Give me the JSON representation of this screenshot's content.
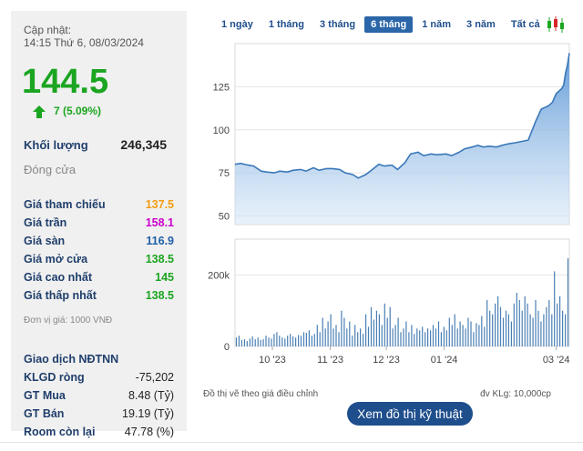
{
  "stats": {
    "update_label": "Cập nhật:",
    "update_time": "14:15 Thứ 6, 08/03/2024",
    "price": "144.5",
    "change": "7 (5.09%)",
    "volume_label": "Khối lượng",
    "volume_value": "246,345",
    "close_label": "Đóng cửa",
    "rows": [
      {
        "label": "Giá tham chiếu",
        "value": "137.5",
        "color": "#f39c12"
      },
      {
        "label": "Giá trần",
        "value": "158.1",
        "color": "#cc00cc"
      },
      {
        "label": "Giá sàn",
        "value": "116.9",
        "color": "#1f5fa8"
      },
      {
        "label": "Giá mở cửa",
        "value": "138.5",
        "color": "#1ba520"
      },
      {
        "label": "Giá cao nhất",
        "value": "145",
        "color": "#1ba520"
      },
      {
        "label": "Giá thấp nhất",
        "value": "138.5",
        "color": "#1ba520"
      }
    ],
    "unit_note": "Đơn vị giá: 1000 VNĐ",
    "foreign_title": "Giao dịch NĐTNN",
    "foreign_rows": [
      {
        "label": "KLGD ròng",
        "value": "-75,202"
      },
      {
        "label": "GT Mua",
        "value": "8.48 (Tỷ)"
      },
      {
        "label": "GT Bán",
        "value": "19.19 (Tỷ)"
      },
      {
        "label": "Room còn lại",
        "value": "47.78 (%)"
      }
    ]
  },
  "range_tabs": [
    "1 ngày",
    "1 tháng",
    "3 tháng",
    "6 tháng",
    "1 năm",
    "3 năm",
    "Tất cả"
  ],
  "active_tab": "6 tháng",
  "candlestick_icon": "candlestick-icon",
  "footnote_left": "Đồ thị vẽ theo giá điều chỉnh",
  "footnote_right": "đv KLg: 10,000cp",
  "tech_button": "Xem đồ thị kỹ thuật",
  "colors": {
    "up": "#1ba520",
    "accent": "#1f4e8c",
    "line": "#3a78b8",
    "bar": "#4a7fb5"
  },
  "chart_data": [
    {
      "type": "area",
      "ylim": [
        45,
        150
      ],
      "yticks": [
        50,
        75,
        100,
        125
      ],
      "grid": true,
      "xlim": [
        "2023-09-11",
        "2024-03-08"
      ],
      "points": [
        [
          "2023-09-11",
          80
        ],
        [
          "2023-09-14",
          80.5
        ],
        [
          "2023-09-18",
          79.5
        ],
        [
          "2023-09-21",
          79
        ],
        [
          "2023-09-25",
          76
        ],
        [
          "2023-09-28",
          75.5
        ],
        [
          "2023-10-02",
          75
        ],
        [
          "2023-10-05",
          76
        ],
        [
          "2023-10-09",
          75.5
        ],
        [
          "2023-10-12",
          76.5
        ],
        [
          "2023-10-16",
          77
        ],
        [
          "2023-10-19",
          76
        ],
        [
          "2023-10-23",
          78
        ],
        [
          "2023-10-26",
          76.5
        ],
        [
          "2023-10-30",
          77.5
        ],
        [
          "2023-11-02",
          77.5
        ],
        [
          "2023-11-06",
          77
        ],
        [
          "2023-11-09",
          75
        ],
        [
          "2023-11-13",
          74
        ],
        [
          "2023-11-16",
          72
        ],
        [
          "2023-11-20",
          74
        ],
        [
          "2023-11-23",
          76.5
        ],
        [
          "2023-11-27",
          80
        ],
        [
          "2023-11-30",
          79
        ],
        [
          "2023-12-04",
          79.5
        ],
        [
          "2023-12-07",
          77
        ],
        [
          "2023-12-11",
          81
        ],
        [
          "2023-12-14",
          86
        ],
        [
          "2023-12-18",
          87
        ],
        [
          "2023-12-21",
          85
        ],
        [
          "2023-12-25",
          86
        ],
        [
          "2023-12-28",
          85.5
        ],
        [
          "2024-01-02",
          86
        ],
        [
          "2024-01-05",
          85
        ],
        [
          "2024-01-09",
          87
        ],
        [
          "2024-01-12",
          89
        ],
        [
          "2024-01-16",
          90
        ],
        [
          "2024-01-19",
          91
        ],
        [
          "2024-01-22",
          90
        ],
        [
          "2024-01-25",
          90.5
        ],
        [
          "2024-01-29",
          90
        ],
        [
          "2024-02-01",
          91
        ],
        [
          "2024-02-05",
          92
        ],
        [
          "2024-02-08",
          92.5
        ],
        [
          "2024-02-15",
          94
        ],
        [
          "2024-02-19",
          105
        ],
        [
          "2024-02-22",
          112
        ],
        [
          "2024-02-26",
          114
        ],
        [
          "2024-02-28",
          116
        ],
        [
          "2024-03-01",
          121
        ],
        [
          "2024-03-04",
          124
        ],
        [
          "2024-03-05",
          126
        ],
        [
          "2024-03-06",
          133
        ],
        [
          "2024-03-07",
          137.5
        ],
        [
          "2024-03-08",
          144.5
        ]
      ]
    },
    {
      "type": "bar",
      "unit": "10,000cp",
      "ylim": [
        0,
        300000
      ],
      "yticks": [
        {
          "value": 0,
          "label": "0"
        },
        {
          "value": 200000,
          "label": "200k"
        }
      ],
      "xticks": [
        {
          "date": "2023-10-01",
          "label": "10 '23"
        },
        {
          "date": "2023-11-01",
          "label": "11 '23"
        },
        {
          "date": "2023-12-01",
          "label": "12 '23"
        },
        {
          "date": "2024-01-01",
          "label": "01 '24"
        },
        {
          "date": "2024-03-01",
          "label": "03 '24"
        }
      ],
      "values": [
        25000,
        30000,
        18000,
        20000,
        15000,
        22000,
        28000,
        20000,
        25000,
        18000,
        20000,
        30000,
        25000,
        22000,
        35000,
        40000,
        30000,
        25000,
        22000,
        30000,
        35000,
        28000,
        25000,
        32000,
        30000,
        40000,
        38000,
        45000,
        30000,
        35000,
        60000,
        40000,
        80000,
        50000,
        70000,
        90000,
        50000,
        60000,
        40000,
        100000,
        80000,
        50000,
        70000,
        30000,
        60000,
        40000,
        50000,
        35000,
        90000,
        55000,
        110000,
        75000,
        100000,
        90000,
        60000,
        120000,
        80000,
        110000,
        50000,
        60000,
        80000,
        40000,
        50000,
        70000,
        40000,
        60000,
        35000,
        50000,
        45000,
        55000,
        40000,
        50000,
        45000,
        60000,
        50000,
        70000,
        40000,
        55000,
        45000,
        80000,
        60000,
        90000,
        50000,
        70000,
        60000,
        50000,
        80000,
        70000,
        40000,
        65000,
        60000,
        85000,
        55000,
        130000,
        100000,
        90000,
        120000,
        140000,
        110000,
        80000,
        100000,
        90000,
        70000,
        120000,
        150000,
        130000,
        100000,
        140000,
        120000,
        90000,
        80000,
        130000,
        100000,
        70000,
        90000,
        110000,
        130000,
        90000,
        210000,
        120000,
        140000,
        100000,
        90000,
        246345
      ]
    }
  ]
}
